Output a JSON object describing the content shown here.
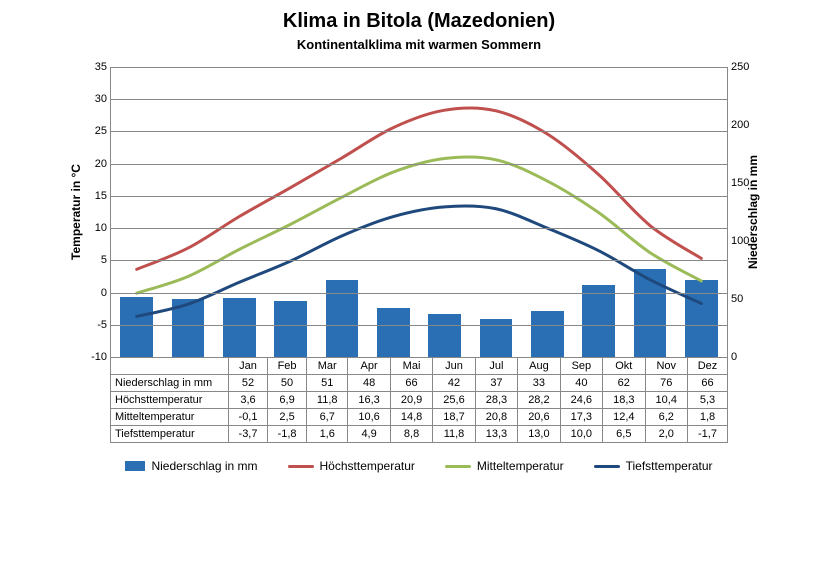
{
  "title": {
    "text": "Klima in Bitola (Mazedonien)",
    "fontsize": 20
  },
  "subtitle": {
    "text": "Kontinentalklima mit warmen Sommern",
    "fontsize": 13
  },
  "axis_left": {
    "label": "Temperatur  in  °C",
    "min": -10,
    "max": 35,
    "step": 5
  },
  "axis_right": {
    "label": "Niederschlag  in  mm",
    "min": 0,
    "max": 250,
    "step": 50
  },
  "months": [
    "Jan",
    "Feb",
    "Mar",
    "Apr",
    "Mai",
    "Jun",
    "Jul",
    "Aug",
    "Sep",
    "Okt",
    "Nov",
    "Dez"
  ],
  "series": {
    "precip": {
      "label": "Niederschlag in mm",
      "color": "#2a6fb4",
      "type": "bar",
      "values": [
        52,
        50,
        51,
        48,
        66,
        42,
        37,
        33,
        40,
        62,
        76,
        66
      ]
    },
    "high": {
      "label": "Höchsttemperatur",
      "color": "#c0504d",
      "type": "line",
      "values": [
        3.6,
        6.9,
        11.8,
        16.3,
        20.9,
        25.6,
        28.3,
        28.2,
        24.6,
        18.3,
        10.4,
        5.3
      ]
    },
    "mean": {
      "label": "Mitteltemperatur",
      "color": "#9bbb59",
      "type": "line",
      "values": [
        -0.1,
        2.5,
        6.7,
        10.6,
        14.8,
        18.7,
        20.8,
        20.6,
        17.3,
        12.4,
        6.2,
        1.8
      ]
    },
    "low": {
      "label": "Tiefsttemperatur",
      "color": "#1f497d",
      "type": "line",
      "values": [
        -3.7,
        -1.8,
        1.6,
        4.9,
        8.8,
        11.8,
        13.3,
        13.0,
        10.0,
        6.5,
        2.0,
        -1.7
      ]
    }
  },
  "style": {
    "grid_color": "#888888",
    "line_width": 3,
    "background": "#ffffff"
  },
  "table_rows": [
    {
      "key": "precip",
      "label": "Niederschlag in mm",
      "decimals": 0
    },
    {
      "key": "high",
      "label": "Höchsttemperatur",
      "decimals": 1
    },
    {
      "key": "mean",
      "label": "Mitteltemperatur",
      "decimals": 1
    },
    {
      "key": "low",
      "label": "Tiefsttemperatur",
      "decimals": 1
    }
  ]
}
